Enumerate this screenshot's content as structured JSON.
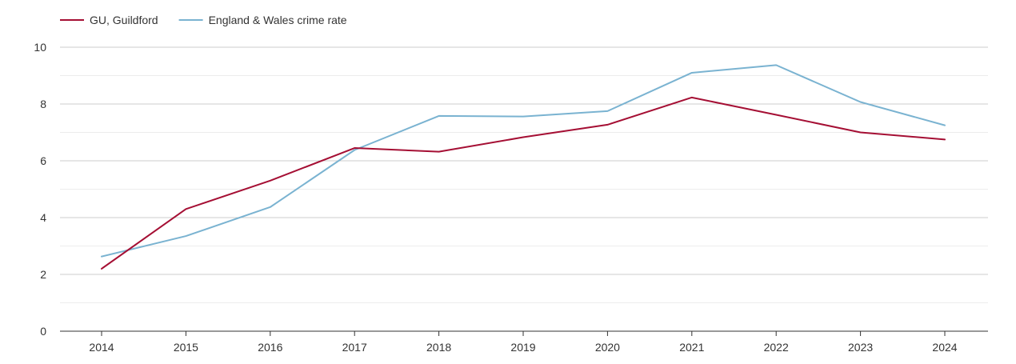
{
  "chart_data": {
    "type": "line",
    "title": "",
    "xlabel": "",
    "ylabel": "",
    "categories": [
      "2014",
      "2015",
      "2016",
      "2017",
      "2018",
      "2019",
      "2020",
      "2021",
      "2022",
      "2023",
      "2024"
    ],
    "series": [
      {
        "name": "GU, Guildford",
        "color": "#a50f34",
        "values": [
          2.2,
          4.3,
          5.3,
          6.45,
          6.32,
          6.83,
          7.27,
          8.23,
          7.62,
          7.0,
          6.75
        ]
      },
      {
        "name": "England & Wales crime rate",
        "color": "#7ab3d1",
        "values": [
          2.63,
          3.35,
          4.37,
          6.38,
          7.58,
          7.56,
          7.75,
          9.1,
          9.37,
          8.07,
          7.25
        ]
      }
    ],
    "ylim": [
      0,
      10
    ],
    "yticks": [
      0,
      2,
      4,
      6,
      8,
      10
    ],
    "grid": true,
    "legend_position": "top-left"
  }
}
